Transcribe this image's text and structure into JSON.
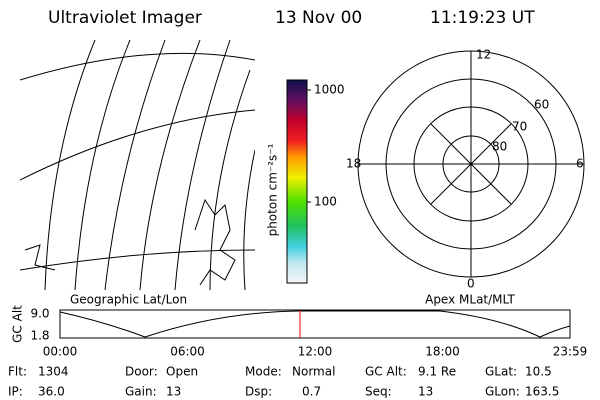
{
  "header": {
    "title": "Ultraviolet Imager",
    "date": "13 Nov 00",
    "time": "11:19:23 UT"
  },
  "map": {
    "label": "Geographic Lat/Lon"
  },
  "colorbar": {
    "axis_label": "photon cm⁻²s⁻¹",
    "ticks": [
      "1000",
      "100"
    ]
  },
  "polar": {
    "label": "Apex MLat/MLT",
    "mlt": [
      "12",
      "6",
      "0",
      "18"
    ],
    "mlat": [
      "60",
      "70",
      "80"
    ]
  },
  "timeline": {
    "axis_label": "GC Alt",
    "yticks": [
      "9.0",
      "1.8"
    ],
    "xticks": [
      "00:00",
      "06:00",
      "12:00",
      "18:00",
      "23:59"
    ]
  },
  "info": [
    [
      {
        "label": "Flt:",
        "value": "1304"
      },
      {
        "label": "Door:",
        "value": "Open"
      },
      {
        "label": "Mode:",
        "value": "Normal"
      },
      {
        "label": "GC Alt:",
        "value": "9.1 Re"
      },
      {
        "label": "GLat:",
        "value": "10.5"
      }
    ],
    [
      {
        "label": "IP:",
        "value": "36.0"
      },
      {
        "label": "Gain:",
        "value": "13"
      },
      {
        "label": "Dsp:",
        "value": "0.7"
      },
      {
        "label": "Seq:",
        "value": "13"
      },
      {
        "label": "GLon:",
        "value": "163.5"
      }
    ]
  ]
}
